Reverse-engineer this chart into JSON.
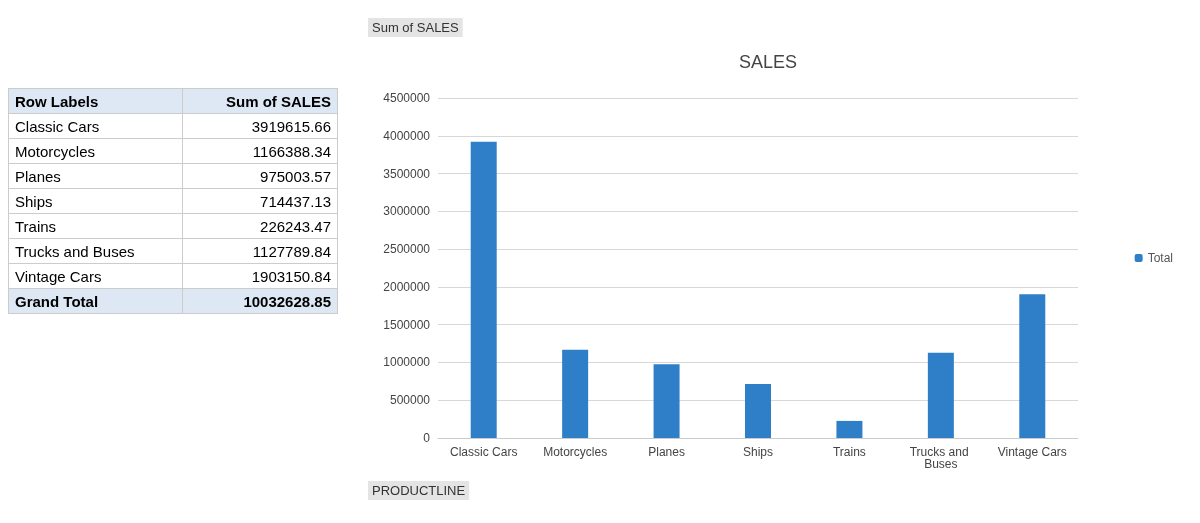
{
  "chart_data": {
    "type": "bar",
    "title": "SALES",
    "categories": [
      "Classic Cars",
      "Motorcycles",
      "Planes",
      "Ships",
      "Trains",
      "Trucks and Buses",
      "Vintage Cars"
    ],
    "series": [
      {
        "name": "Total",
        "color": "#2f7fc8",
        "values": [
          3919615.66,
          1166388.34,
          975003.57,
          714437.13,
          226243.47,
          1127789.84,
          1903150.84
        ]
      }
    ],
    "ylim": [
      0,
      4500000
    ],
    "yticks": [
      0,
      500000,
      1000000,
      1500000,
      2000000,
      2500000,
      3000000,
      3500000,
      4000000,
      4500000
    ],
    "grid": "y",
    "legend": "right",
    "annotations": [
      "Row Labels",
      "Sum of SALES",
      "Grand Total",
      "10032628.85",
      "Sum of SALES",
      "PRODUCTLINE",
      "3919615.66",
      "1166388.34",
      "975003.57",
      "714437.13",
      "226243.47",
      "1127789.84",
      "1903150.84"
    ]
  }
}
